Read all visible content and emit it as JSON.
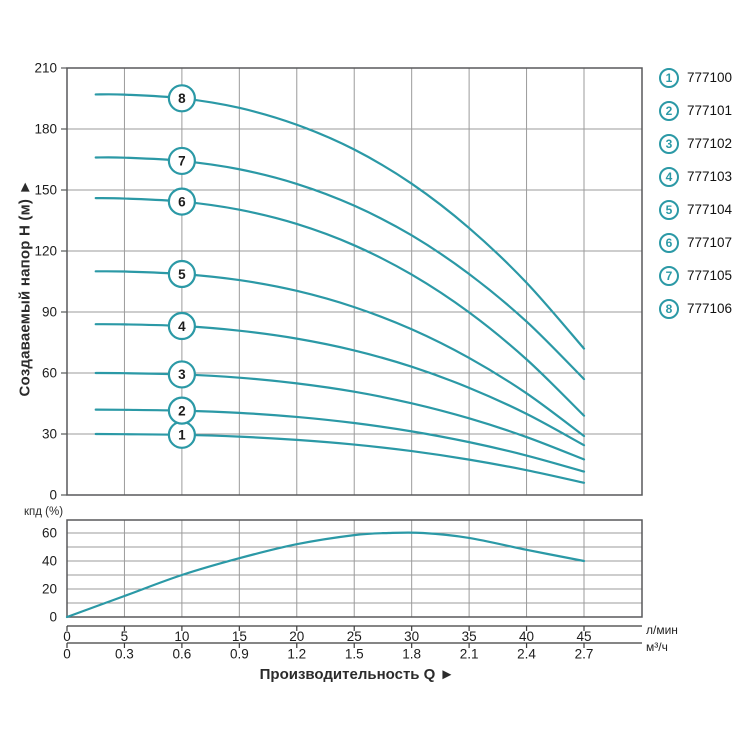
{
  "colors": {
    "curve": "#2b99a6",
    "grid": "#9b9b9b",
    "border": "#58595b",
    "axis_line": "#3c3c3c",
    "text": "#1c1c1c"
  },
  "titles": {
    "y_axis": "Создаваемый напор Н (м) ►",
    "x_axis": "Производительность Q ►"
  },
  "units": {
    "primary": "л/мин",
    "secondary": "м³/ч"
  },
  "legend": {
    "items": [
      {
        "num": "1",
        "model": "777100"
      },
      {
        "num": "2",
        "model": "777101"
      },
      {
        "num": "3",
        "model": "777102"
      },
      {
        "num": "4",
        "model": "777103"
      },
      {
        "num": "5",
        "model": "777104"
      },
      {
        "num": "6",
        "model": "777107"
      },
      {
        "num": "7",
        "model": "777105"
      },
      {
        "num": "8",
        "model": "777106"
      }
    ]
  },
  "chart_data": [
    {
      "type": "line",
      "title": "Pump head curves",
      "xlabel": "Производительность Q",
      "ylabel": "Создаваемый напор Н (м)",
      "x_unit_primary": "л/мин",
      "x_unit_secondary": "м³/ч",
      "xlim": [
        0,
        50
      ],
      "ylim": [
        0,
        210
      ],
      "grid": "on",
      "legend_position": "right",
      "y_ticks": [
        0,
        30,
        60,
        90,
        120,
        150,
        180,
        210
      ],
      "x_ticks_lmin": [
        0,
        5,
        10,
        15,
        20,
        25,
        30,
        35,
        40,
        45
      ],
      "x_ticks_m3h": [
        "0",
        "0.3",
        "0.6",
        "0.9",
        "1.2",
        "1.5",
        "1.8",
        "2.1",
        "2.4",
        "2.7"
      ],
      "marker_q": 10,
      "series": [
        {
          "name": "1",
          "model": "777100",
          "points": [
            [
              2.5,
              30
            ],
            [
              5,
              29.9
            ],
            [
              10,
              29.6
            ],
            [
              15,
              28.7
            ],
            [
              20,
              27.1
            ],
            [
              25,
              24.8
            ],
            [
              30,
              21.6
            ],
            [
              35,
              17.4
            ],
            [
              40,
              12.2
            ],
            [
              45,
              6
            ]
          ]
        },
        {
          "name": "2",
          "model": "777101",
          "points": [
            [
              2.5,
              42
            ],
            [
              5,
              41.9
            ],
            [
              10,
              41.5
            ],
            [
              15,
              40.4
            ],
            [
              20,
              38.4
            ],
            [
              25,
              35.4
            ],
            [
              30,
              31.3
            ],
            [
              35,
              26
            ],
            [
              40,
              19.4
            ],
            [
              45,
              11.5
            ]
          ]
        },
        {
          "name": "3",
          "model": "777102",
          "points": [
            [
              2.5,
              60
            ],
            [
              5,
              59.9
            ],
            [
              10,
              59.3
            ],
            [
              15,
              57.7
            ],
            [
              20,
              54.9
            ],
            [
              25,
              50.8
            ],
            [
              30,
              45.1
            ],
            [
              35,
              37.7
            ],
            [
              40,
              28.5
            ],
            [
              45,
              17.5
            ]
          ]
        },
        {
          "name": "4",
          "model": "777103",
          "points": [
            [
              2.5,
              84
            ],
            [
              5,
              83.9
            ],
            [
              10,
              83.1
            ],
            [
              15,
              80.8
            ],
            [
              20,
              76.9
            ],
            [
              25,
              71.1
            ],
            [
              30,
              63.1
            ],
            [
              35,
              52.7
            ],
            [
              40,
              39.9
            ],
            [
              45,
              24.5
            ]
          ]
        },
        {
          "name": "5",
          "model": "777104",
          "points": [
            [
              2.5,
              110
            ],
            [
              5,
              109.9
            ],
            [
              10,
              108.7
            ],
            [
              15,
              105.7
            ],
            [
              20,
              100.4
            ],
            [
              25,
              92.4
            ],
            [
              30,
              81.5
            ],
            [
              35,
              67.4
            ],
            [
              40,
              50
            ],
            [
              45,
              29
            ]
          ]
        },
        {
          "name": "6",
          "model": "777107",
          "points": [
            [
              2.5,
              146
            ],
            [
              5,
              145.8
            ],
            [
              10,
              144.3
            ],
            [
              15,
              140.3
            ],
            [
              20,
              133.3
            ],
            [
              25,
              122.8
            ],
            [
              30,
              108.4
            ],
            [
              35,
              89.8
            ],
            [
              40,
              66.7
            ],
            [
              45,
              39
            ]
          ]
        },
        {
          "name": "7",
          "model": "777105",
          "points": [
            [
              2.5,
              166
            ],
            [
              5,
              165.9
            ],
            [
              10,
              164.3
            ],
            [
              15,
              160.2
            ],
            [
              20,
              153
            ],
            [
              25,
              142.3
            ],
            [
              30,
              127.7
            ],
            [
              35,
              108.7
            ],
            [
              40,
              85.3
            ],
            [
              45,
              57
            ]
          ]
        },
        {
          "name": "8",
          "model": "777106",
          "points": [
            [
              2.5,
              197
            ],
            [
              5,
              196.9
            ],
            [
              10,
              195.1
            ],
            [
              15,
              190.4
            ],
            [
              20,
              182.1
            ],
            [
              25,
              169.9
            ],
            [
              30,
              153.1
            ],
            [
              35,
              131.3
            ],
            [
              40,
              104.4
            ],
            [
              45,
              72
            ]
          ]
        }
      ]
    },
    {
      "type": "line",
      "title": "Efficiency curve",
      "ylabel": "кпд (%)",
      "ylim": [
        0,
        69
      ],
      "grid": "on",
      "y_ticks": [
        0,
        20,
        40,
        60
      ],
      "y_gridlines": [
        10,
        20,
        30,
        40,
        50,
        60
      ],
      "series": [
        {
          "name": "КПД",
          "points": [
            [
              0,
              0
            ],
            [
              5,
              15
            ],
            [
              10,
              30
            ],
            [
              15,
              42
            ],
            [
              20,
              52
            ],
            [
              25,
              58.5
            ],
            [
              28,
              60
            ],
            [
              31,
              60
            ],
            [
              35,
              56.5
            ],
            [
              40,
              48
            ],
            [
              45,
              40
            ]
          ]
        }
      ]
    }
  ]
}
